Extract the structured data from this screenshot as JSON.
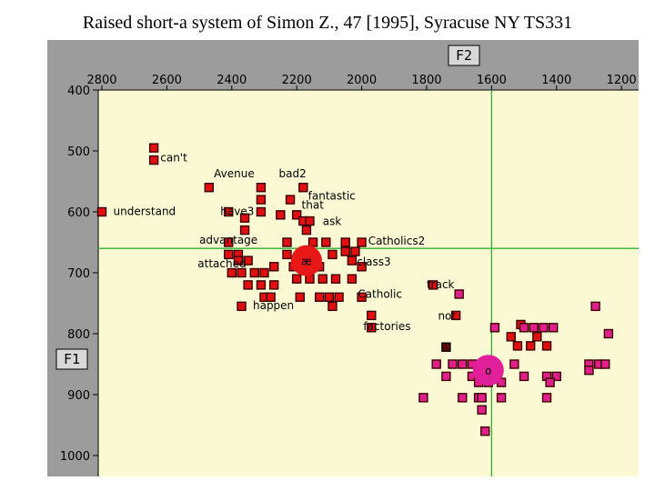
{
  "title": "Raised short-a system of Simon Z., 47 [1995], Syracuse NY TS331",
  "colors": {
    "panel": "#9c9c9c",
    "plot_bg": "#fbf8d4",
    "guide": "#2fb52f",
    "short_a": "#e01010",
    "short_o": "#e0208a",
    "mean_short_a": "#e81818",
    "mean_short_o": "#e0209a",
    "point_border": "#3a0000"
  },
  "chart_data": {
    "type": "scatter",
    "xlabel": "F2",
    "ylabel": "F1",
    "xlim": [
      2800,
      1150
    ],
    "ylim": [
      400,
      1000
    ],
    "x_ticks": [
      "2800",
      "2600",
      "2400",
      "2200",
      "2000",
      "1800",
      "1600",
      "1400",
      "1200"
    ],
    "y_ticks": [
      "400",
      "500",
      "600",
      "700",
      "800",
      "900",
      "1000"
    ],
    "guide_lines": {
      "F2": 1600,
      "F1": 660
    },
    "series": [
      {
        "points": [
          [
            2640,
            495
          ],
          [
            2640,
            515
          ],
          [
            2800,
            600
          ],
          [
            2470,
            560
          ],
          [
            2410,
            600
          ],
          [
            2360,
            630
          ],
          [
            2360,
            610
          ],
          [
            2310,
            560
          ],
          [
            2310,
            580
          ],
          [
            2310,
            600
          ],
          [
            2220,
            580
          ],
          [
            2180,
            560
          ],
          [
            2250,
            605
          ],
          [
            2200,
            605
          ],
          [
            2180,
            615
          ],
          [
            2160,
            615
          ],
          [
            2170,
            630
          ],
          [
            2230,
            650
          ],
          [
            2230,
            670
          ],
          [
            2190,
            670
          ],
          [
            2150,
            650
          ],
          [
            2110,
            650
          ],
          [
            2090,
            670
          ],
          [
            2050,
            650
          ],
          [
            2050,
            665
          ],
          [
            2020,
            665
          ],
          [
            2000,
            650
          ],
          [
            2410,
            650
          ],
          [
            2410,
            670
          ],
          [
            2380,
            670
          ],
          [
            2380,
            680
          ],
          [
            2350,
            680
          ],
          [
            2400,
            700
          ],
          [
            2370,
            700
          ],
          [
            2330,
            700
          ],
          [
            2300,
            700
          ],
          [
            2270,
            690
          ],
          [
            2210,
            690
          ],
          [
            2160,
            690
          ],
          [
            2130,
            690
          ],
          [
            2030,
            680
          ],
          [
            2000,
            690
          ],
          [
            2350,
            720
          ],
          [
            2310,
            720
          ],
          [
            2270,
            720
          ],
          [
            2200,
            710
          ],
          [
            2160,
            710
          ],
          [
            2120,
            710
          ],
          [
            2080,
            710
          ],
          [
            2030,
            710
          ],
          [
            2300,
            740
          ],
          [
            2280,
            740
          ],
          [
            2190,
            740
          ],
          [
            2130,
            740
          ],
          [
            2100,
            740
          ],
          [
            2070,
            740
          ],
          [
            2000,
            740
          ],
          [
            2370,
            755
          ],
          [
            2090,
            755
          ],
          [
            1970,
            770
          ],
          [
            1970,
            790
          ],
          [
            1780,
            720
          ],
          [
            1710,
            770
          ],
          [
            1510,
            785
          ],
          [
            1540,
            805
          ],
          [
            1480,
            820
          ],
          [
            1460,
            805
          ],
          [
            1430,
            820
          ],
          [
            1520,
            820
          ]
        ]
      },
      {
        "points": [
          [
            1700,
            735
          ],
          [
            1590,
            790
          ],
          [
            1500,
            790
          ],
          [
            1470,
            790
          ],
          [
            1440,
            790
          ],
          [
            1410,
            790
          ],
          [
            1280,
            755
          ],
          [
            1240,
            800
          ],
          [
            1770,
            850
          ],
          [
            1720,
            850
          ],
          [
            1690,
            850
          ],
          [
            1660,
            850
          ],
          [
            1630,
            850
          ],
          [
            1610,
            850
          ],
          [
            1590,
            850
          ],
          [
            1530,
            850
          ],
          [
            1300,
            850
          ],
          [
            1270,
            850
          ],
          [
            1250,
            850
          ],
          [
            1740,
            870
          ],
          [
            1660,
            870
          ],
          [
            1500,
            870
          ],
          [
            1430,
            870
          ],
          [
            1400,
            870
          ],
          [
            1570,
            880
          ],
          [
            1610,
            880
          ],
          [
            1640,
            880
          ],
          [
            1810,
            905
          ],
          [
            1690,
            905
          ],
          [
            1640,
            905
          ],
          [
            1630,
            905
          ],
          [
            1570,
            905
          ],
          [
            1430,
            905
          ],
          [
            1630,
            925
          ],
          [
            1620,
            960
          ],
          [
            1420,
            880
          ],
          [
            1300,
            860
          ]
        ]
      }
    ],
    "means": [
      {
        "label": "æ",
        "F2": 2170,
        "F1": 680
      },
      {
        "label": "o",
        "F2": 1610,
        "F1": 860
      }
    ],
    "special_points": [
      {
        "F2": 1740,
        "F1": 822
      }
    ],
    "annotations": [
      {
        "text": "can't",
        "F2": 2620,
        "F1": 517
      },
      {
        "text": "Avenue",
        "F2": 2455,
        "F1": 543
      },
      {
        "text": "bad2",
        "F2": 2255,
        "F1": 543
      },
      {
        "text": "fantastic",
        "F2": 2165,
        "F1": 580
      },
      {
        "text": "understand",
        "F2": 2765,
        "F1": 605
      },
      {
        "text": "have3",
        "F2": 2435,
        "F1": 605
      },
      {
        "text": "that",
        "F2": 2185,
        "F1": 595
      },
      {
        "text": "ask",
        "F2": 2120,
        "F1": 622
      },
      {
        "text": "advantage",
        "F2": 2500,
        "F1": 652
      },
      {
        "text": "Catholics2",
        "F2": 1980,
        "F1": 654
      },
      {
        "text": "attached",
        "F2": 2505,
        "F1": 691
      },
      {
        "text": "class3",
        "F2": 2015,
        "F1": 688
      },
      {
        "text": "track",
        "F2": 1800,
        "F1": 725
      },
      {
        "text": "Catholic",
        "F2": 2012,
        "F1": 741
      },
      {
        "text": "happen",
        "F2": 2335,
        "F1": 760
      },
      {
        "text": "not",
        "F2": 1765,
        "F1": 777
      },
      {
        "text": "factories",
        "F2": 1995,
        "F1": 794
      }
    ]
  }
}
